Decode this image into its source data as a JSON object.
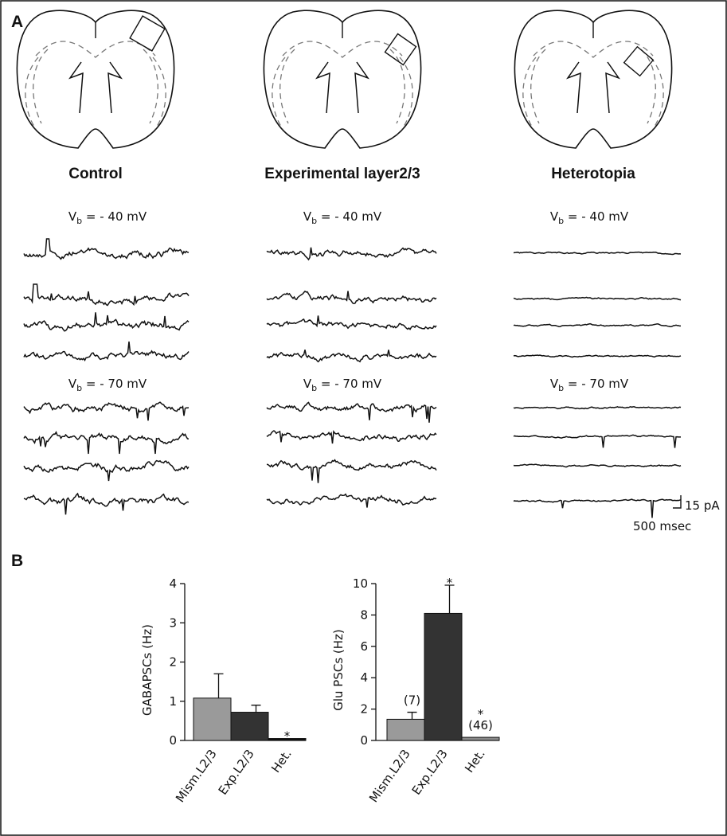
{
  "panel_labels": [
    "A",
    "B"
  ],
  "conditions": [
    "Control",
    "Experimental layer2/3",
    "Heterotopia"
  ],
  "holding": [
    {
      "symbol": "V",
      "subscript": "b",
      "rest": " = - 40 mV"
    },
    {
      "symbol": "V",
      "subscript": "b",
      "rest": " = - 70 mV"
    }
  ],
  "scale_bar": {
    "current": "15 pA",
    "time": "500 msec"
  },
  "chart_data": [
    {
      "type": "bar",
      "ylabel": "GABAPSCs (Hz)",
      "categories": [
        "Mism.L2/3",
        "Exp.L2/3",
        "Het."
      ],
      "values": [
        1.08,
        0.72,
        0.05
      ],
      "errors": [
        0.62,
        0.18,
        null
      ],
      "colors": [
        "#9a9a9a",
        "#333333",
        "#111111"
      ],
      "labels_above": [
        [],
        [],
        [
          "*"
        ]
      ],
      "ylim": [
        0,
        4
      ],
      "yticks": [
        0,
        1,
        2,
        3,
        4
      ]
    },
    {
      "type": "bar",
      "ylabel": "Glu PSCs (Hz)",
      "categories": [
        "Mism.L2/3",
        "Exp.L2/3",
        "Het."
      ],
      "values": [
        1.35,
        8.1,
        0.2
      ],
      "errors": [
        0.45,
        1.8,
        null
      ],
      "colors": [
        "#9a9a9a",
        "#333333",
        "#8a8a8a"
      ],
      "labels_above": [
        [
          "(7)"
        ],
        [
          "*"
        ],
        [
          "*",
          "(46)"
        ]
      ],
      "ylim": [
        0,
        10
      ],
      "yticks": [
        0,
        2,
        4,
        6,
        8,
        10
      ]
    }
  ]
}
